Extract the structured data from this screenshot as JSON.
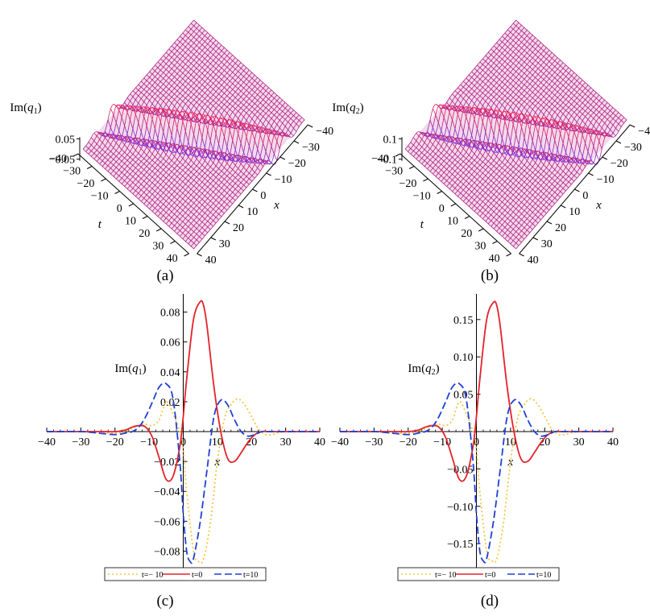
{
  "captions": [
    "(a)",
    "(b)",
    "(c)",
    "(d)"
  ],
  "chart_data": [
    {
      "panel": "(a)",
      "type": "surface3d",
      "zlabel": "Im(q1)",
      "xlabel": "x",
      "ylabel": "t",
      "z_ticks": [
        0.05,
        -0.05
      ],
      "x_ticks": [
        -40,
        -30,
        -20,
        -10,
        0,
        10,
        20,
        30,
        40
      ],
      "t_ticks": [
        -40,
        -30,
        -20,
        -10,
        0,
        10,
        20,
        30,
        40
      ],
      "amplitude": 0.087,
      "colors": {
        "mesh": "#b0207e",
        "crest": "#ff2050",
        "trough": "#6a2cff"
      }
    },
    {
      "panel": "(b)",
      "type": "surface3d",
      "zlabel": "Im(q2)",
      "xlabel": "x",
      "ylabel": "t",
      "z_ticks": [
        0.1,
        -0.1
      ],
      "x_ticks": [
        -40,
        -30,
        -20,
        -10,
        0,
        10,
        20,
        30,
        40
      ],
      "t_ticks": [
        -40,
        -30,
        -20,
        -10,
        0,
        10,
        20,
        30,
        40
      ],
      "amplitude": 0.173,
      "colors": {
        "mesh": "#b0207e",
        "crest": "#ff2050",
        "trough": "#6a2cff"
      }
    },
    {
      "panel": "(c)",
      "type": "line",
      "ylabel": "Im(q1)",
      "xlabel": "x",
      "xlim": [
        -40,
        40
      ],
      "ylim": [
        -0.09,
        0.09
      ],
      "x_ticks": [
        -40,
        -30,
        -20,
        -10,
        0,
        10,
        20,
        30,
        40
      ],
      "y_ticks": [
        -0.08,
        -0.06,
        -0.04,
        -0.02,
        0.02,
        0.04,
        0.06,
        0.08
      ],
      "y_tick_labels": [
        "-0.08",
        "-0.06",
        "-0.04",
        "-0.02",
        "0.02",
        "0.04",
        "0.06",
        "0.08"
      ],
      "legend": {
        "placement": "bottom"
      },
      "series": [
        {
          "name": "t=− 10",
          "color": "#f5c542",
          "dash": "dotted",
          "x": [
            -40,
            -30,
            -25,
            -20,
            -17,
            -15,
            -13,
            -11,
            -9,
            -7,
            -5,
            -3,
            -1,
            0,
            1,
            3,
            4.5,
            6,
            8,
            10,
            12,
            14,
            16,
            18,
            20,
            22,
            24,
            26,
            30,
            40
          ],
          "y": [
            0,
            0,
            -0.001,
            -0.001,
            0,
            0.002,
            0.004,
            0.005,
            0.004,
            0.008,
            0.02,
            0.012,
            0,
            -0.012,
            -0.04,
            -0.08,
            -0.087,
            -0.085,
            -0.06,
            -0.02,
            0.008,
            0.018,
            0.022,
            0.018,
            0.01,
            0.002,
            -0.002,
            -0.002,
            0,
            0
          ]
        },
        {
          "name": "t=0",
          "color": "#e3222a",
          "dash": "solid",
          "x": [
            -40,
            -30,
            -25,
            -20,
            -17,
            -15,
            -13,
            -11,
            -9,
            -7,
            -5,
            -3,
            -1,
            0,
            1,
            3,
            5,
            6,
            7,
            9,
            11,
            13,
            15,
            17,
            19,
            21,
            23,
            25,
            30,
            40
          ],
          "y": [
            0,
            0,
            0,
            0,
            0.001,
            0.003,
            0.004,
            0.003,
            -0.004,
            -0.018,
            -0.032,
            -0.03,
            -0.01,
            0.01,
            0.035,
            0.075,
            0.087,
            0.084,
            0.07,
            0.03,
            0,
            -0.018,
            -0.02,
            -0.014,
            -0.007,
            -0.002,
            0,
            0,
            0,
            0
          ]
        },
        {
          "name": "t=10",
          "color": "#1f3fd6",
          "dash": "dashed",
          "x": [
            -40,
            -30,
            -25,
            -20,
            -17,
            -15,
            -13,
            -11,
            -9,
            -7,
            -5,
            -3,
            -1,
            0,
            1,
            2,
            3,
            5,
            7,
            9,
            11,
            13,
            15,
            17,
            19,
            21,
            23,
            25,
            30,
            40
          ],
          "y": [
            0,
            0,
            -0.001,
            -0.002,
            -0.001,
            0,
            0.003,
            0.01,
            0.02,
            0.03,
            0.032,
            0.022,
            -0.02,
            -0.055,
            -0.08,
            -0.087,
            -0.085,
            -0.06,
            -0.025,
            0.01,
            0.021,
            0.018,
            0.008,
            0,
            -0.003,
            -0.002,
            0,
            0,
            0,
            0
          ]
        }
      ]
    },
    {
      "panel": "(d)",
      "type": "line",
      "ylabel": "Im(q2)",
      "xlabel": "x",
      "xlim": [
        -40,
        40
      ],
      "ylim": [
        -0.18,
        0.18
      ],
      "x_ticks": [
        -40,
        -30,
        -20,
        -10,
        0,
        10,
        20,
        30,
        40
      ],
      "y_ticks": [
        -0.15,
        -0.1,
        -0.05,
        0.05,
        0.1,
        0.15
      ],
      "y_tick_labels": [
        "-0.15",
        "-0.10",
        "-0.05",
        "0.05",
        "0.10",
        "0.15"
      ],
      "legend": {
        "placement": "bottom"
      },
      "series": [
        {
          "name": "t=− 10",
          "color": "#f5c542",
          "dash": "dotted",
          "x": [
            -40,
            -30,
            -25,
            -20,
            -17,
            -15,
            -13,
            -11,
            -9,
            -7,
            -5,
            -3,
            -1,
            0,
            1,
            3,
            4.5,
            6,
            8,
            10,
            12,
            14,
            16,
            18,
            20,
            22,
            24,
            26,
            30,
            40
          ],
          "y": [
            0,
            0,
            -0.002,
            -0.002,
            0,
            0.004,
            0.008,
            0.01,
            0.008,
            0.016,
            0.04,
            0.024,
            0,
            -0.024,
            -0.08,
            -0.16,
            -0.173,
            -0.17,
            -0.12,
            -0.04,
            0.016,
            0.036,
            0.044,
            0.036,
            0.02,
            0.004,
            -0.004,
            -0.004,
            0,
            0
          ]
        },
        {
          "name": "t=0",
          "color": "#e3222a",
          "dash": "solid",
          "x": [
            -40,
            -30,
            -25,
            -20,
            -17,
            -15,
            -13,
            -11,
            -9,
            -7,
            -5,
            -3,
            -1,
            0,
            1,
            3,
            5,
            6,
            7,
            9,
            11,
            13,
            15,
            17,
            19,
            21,
            23,
            25,
            30,
            40
          ],
          "y": [
            0,
            0,
            0,
            0,
            0.002,
            0.006,
            0.008,
            0.006,
            -0.008,
            -0.036,
            -0.064,
            -0.06,
            -0.02,
            0.02,
            0.07,
            0.15,
            0.173,
            0.168,
            0.14,
            0.06,
            0,
            -0.036,
            -0.04,
            -0.028,
            -0.014,
            -0.004,
            0,
            0,
            0,
            0
          ]
        },
        {
          "name": "t=10",
          "color": "#1f3fd6",
          "dash": "dashed",
          "x": [
            -40,
            -30,
            -25,
            -20,
            -17,
            -15,
            -13,
            -11,
            -9,
            -7,
            -5,
            -3,
            -1,
            0,
            1,
            2,
            3,
            5,
            7,
            9,
            11,
            13,
            15,
            17,
            19,
            21,
            23,
            25,
            30,
            40
          ],
          "y": [
            0,
            0,
            -0.002,
            -0.004,
            -0.002,
            0,
            0.006,
            0.02,
            0.04,
            0.06,
            0.064,
            0.044,
            -0.04,
            -0.11,
            -0.16,
            -0.173,
            -0.17,
            -0.12,
            -0.05,
            0.02,
            0.042,
            0.036,
            0.016,
            0,
            -0.006,
            -0.004,
            0,
            0,
            0,
            0
          ]
        }
      ]
    }
  ]
}
